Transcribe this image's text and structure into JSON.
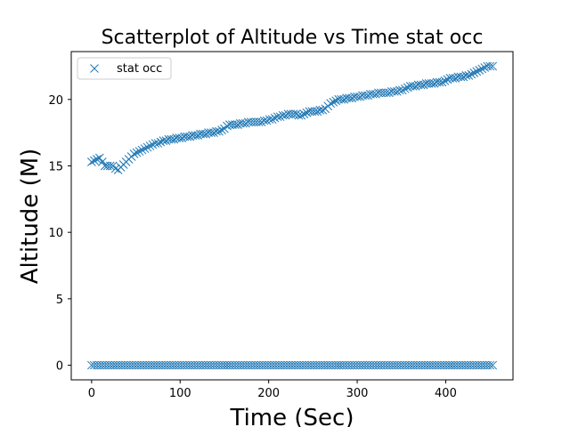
{
  "chart_data": {
    "type": "scatter",
    "title": "Scatterplot of Altitude vs Time stat occ",
    "xlabel": "Time (Sec)",
    "ylabel": "Altitude (M)",
    "xlim": [
      -23,
      476
    ],
    "ylim": [
      -1.1,
      23.6
    ],
    "xticks": [
      0,
      100,
      200,
      300,
      400
    ],
    "yticks": [
      0,
      5,
      10,
      15,
      20
    ],
    "marker": "x",
    "color": "#1f77b4",
    "grid": false,
    "legend_position": "top-left",
    "series": [
      {
        "name": "stat occ",
        "points": [
          [
            0,
            15.3
          ],
          [
            3,
            15.4
          ],
          [
            6,
            15.5
          ],
          [
            9,
            15.6
          ],
          [
            12,
            15.3
          ],
          [
            15,
            15.0
          ],
          [
            18,
            15.0
          ],
          [
            21,
            15.0
          ],
          [
            24,
            15.0
          ],
          [
            27,
            14.8
          ],
          [
            30,
            14.7
          ],
          [
            33,
            14.9
          ],
          [
            36,
            15.1
          ],
          [
            39,
            15.3
          ],
          [
            42,
            15.5
          ],
          [
            45,
            15.7
          ],
          [
            48,
            15.9
          ],
          [
            51,
            16.0
          ],
          [
            54,
            16.1
          ],
          [
            57,
            16.2
          ],
          [
            60,
            16.3
          ],
          [
            63,
            16.4
          ],
          [
            66,
            16.5
          ],
          [
            69,
            16.6
          ],
          [
            72,
            16.7
          ],
          [
            75,
            16.7
          ],
          [
            78,
            16.8
          ],
          [
            81,
            16.9
          ],
          [
            84,
            16.9
          ],
          [
            87,
            17.0
          ],
          [
            90,
            17.0
          ],
          [
            93,
            17.0
          ],
          [
            96,
            17.1
          ],
          [
            99,
            17.1
          ],
          [
            102,
            17.1
          ],
          [
            105,
            17.2
          ],
          [
            108,
            17.2
          ],
          [
            111,
            17.2
          ],
          [
            114,
            17.3
          ],
          [
            117,
            17.3
          ],
          [
            120,
            17.3
          ],
          [
            123,
            17.4
          ],
          [
            126,
            17.4
          ],
          [
            129,
            17.4
          ],
          [
            132,
            17.5
          ],
          [
            135,
            17.5
          ],
          [
            138,
            17.5
          ],
          [
            141,
            17.6
          ],
          [
            144,
            17.6
          ],
          [
            147,
            17.7
          ],
          [
            150,
            17.8
          ],
          [
            153,
            18.0
          ],
          [
            156,
            18.1
          ],
          [
            159,
            18.1
          ],
          [
            162,
            18.1
          ],
          [
            165,
            18.1
          ],
          [
            168,
            18.2
          ],
          [
            171,
            18.2
          ],
          [
            174,
            18.2
          ],
          [
            177,
            18.3
          ],
          [
            180,
            18.3
          ],
          [
            183,
            18.3
          ],
          [
            186,
            18.3
          ],
          [
            189,
            18.3
          ],
          [
            192,
            18.3
          ],
          [
            195,
            18.4
          ],
          [
            198,
            18.4
          ],
          [
            201,
            18.5
          ],
          [
            204,
            18.5
          ],
          [
            207,
            18.6
          ],
          [
            210,
            18.7
          ],
          [
            213,
            18.7
          ],
          [
            216,
            18.8
          ],
          [
            219,
            18.8
          ],
          [
            222,
            18.9
          ],
          [
            225,
            18.9
          ],
          [
            228,
            18.9
          ],
          [
            231,
            18.9
          ],
          [
            234,
            18.8
          ],
          [
            237,
            18.8
          ],
          [
            240,
            18.9
          ],
          [
            243,
            19.0
          ],
          [
            246,
            19.1
          ],
          [
            249,
            19.1
          ],
          [
            252,
            19.1
          ],
          [
            255,
            19.1
          ],
          [
            258,
            19.2
          ],
          [
            261,
            19.2
          ],
          [
            264,
            19.3
          ],
          [
            267,
            19.5
          ],
          [
            270,
            19.7
          ],
          [
            273,
            19.8
          ],
          [
            276,
            19.9
          ],
          [
            279,
            20.0
          ],
          [
            282,
            20.0
          ],
          [
            285,
            20.0
          ],
          [
            288,
            20.1
          ],
          [
            291,
            20.1
          ],
          [
            294,
            20.1
          ],
          [
            297,
            20.2
          ],
          [
            300,
            20.2
          ],
          [
            303,
            20.2
          ],
          [
            306,
            20.3
          ],
          [
            309,
            20.3
          ],
          [
            312,
            20.3
          ],
          [
            315,
            20.4
          ],
          [
            318,
            20.4
          ],
          [
            321,
            20.4
          ],
          [
            324,
            20.5
          ],
          [
            327,
            20.5
          ],
          [
            330,
            20.5
          ],
          [
            333,
            20.5
          ],
          [
            336,
            20.5
          ],
          [
            339,
            20.6
          ],
          [
            342,
            20.6
          ],
          [
            345,
            20.6
          ],
          [
            348,
            20.7
          ],
          [
            351,
            20.7
          ],
          [
            354,
            20.8
          ],
          [
            357,
            20.9
          ],
          [
            360,
            21.0
          ],
          [
            363,
            21.0
          ],
          [
            366,
            21.0
          ],
          [
            369,
            21.1
          ],
          [
            372,
            21.1
          ],
          [
            375,
            21.1
          ],
          [
            378,
            21.2
          ],
          [
            381,
            21.2
          ],
          [
            384,
            21.2
          ],
          [
            387,
            21.2
          ],
          [
            390,
            21.3
          ],
          [
            393,
            21.3
          ],
          [
            396,
            21.3
          ],
          [
            399,
            21.4
          ],
          [
            402,
            21.5
          ],
          [
            405,
            21.6
          ],
          [
            408,
            21.6
          ],
          [
            411,
            21.6
          ],
          [
            414,
            21.7
          ],
          [
            417,
            21.7
          ],
          [
            420,
            21.7
          ],
          [
            423,
            21.8
          ],
          [
            426,
            21.8
          ],
          [
            429,
            21.9
          ],
          [
            432,
            22.0
          ],
          [
            435,
            22.1
          ],
          [
            438,
            22.2
          ],
          [
            441,
            22.3
          ],
          [
            444,
            22.4
          ],
          [
            447,
            22.5
          ],
          [
            450,
            22.5
          ],
          [
            453,
            22.5
          ],
          [
            0,
            0
          ],
          [
            3,
            0
          ],
          [
            6,
            0
          ],
          [
            9,
            0
          ],
          [
            12,
            0
          ],
          [
            15,
            0
          ],
          [
            18,
            0
          ],
          [
            21,
            0
          ],
          [
            24,
            0
          ],
          [
            27,
            0
          ],
          [
            30,
            0
          ],
          [
            33,
            0
          ],
          [
            36,
            0
          ],
          [
            39,
            0
          ],
          [
            42,
            0
          ],
          [
            45,
            0
          ],
          [
            48,
            0
          ],
          [
            51,
            0
          ],
          [
            54,
            0
          ],
          [
            57,
            0
          ],
          [
            60,
            0
          ],
          [
            63,
            0
          ],
          [
            66,
            0
          ],
          [
            69,
            0
          ],
          [
            72,
            0
          ],
          [
            75,
            0
          ],
          [
            78,
            0
          ],
          [
            81,
            0
          ],
          [
            84,
            0
          ],
          [
            87,
            0
          ],
          [
            90,
            0
          ],
          [
            93,
            0
          ],
          [
            96,
            0
          ],
          [
            99,
            0
          ],
          [
            102,
            0
          ],
          [
            105,
            0
          ],
          [
            108,
            0
          ],
          [
            111,
            0
          ],
          [
            114,
            0
          ],
          [
            117,
            0
          ],
          [
            120,
            0
          ],
          [
            123,
            0
          ],
          [
            126,
            0
          ],
          [
            129,
            0
          ],
          [
            132,
            0
          ],
          [
            135,
            0
          ],
          [
            138,
            0
          ],
          [
            141,
            0
          ],
          [
            144,
            0
          ],
          [
            147,
            0
          ],
          [
            150,
            0
          ],
          [
            153,
            0
          ],
          [
            156,
            0
          ],
          [
            159,
            0
          ],
          [
            162,
            0
          ],
          [
            165,
            0
          ],
          [
            168,
            0
          ],
          [
            171,
            0
          ],
          [
            174,
            0
          ],
          [
            177,
            0
          ],
          [
            180,
            0
          ],
          [
            183,
            0
          ],
          [
            186,
            0
          ],
          [
            189,
            0
          ],
          [
            192,
            0
          ],
          [
            195,
            0
          ],
          [
            198,
            0
          ],
          [
            201,
            0
          ],
          [
            204,
            0
          ],
          [
            207,
            0
          ],
          [
            210,
            0
          ],
          [
            213,
            0
          ],
          [
            216,
            0
          ],
          [
            219,
            0
          ],
          [
            222,
            0
          ],
          [
            225,
            0
          ],
          [
            228,
            0
          ],
          [
            231,
            0
          ],
          [
            234,
            0
          ],
          [
            237,
            0
          ],
          [
            240,
            0
          ],
          [
            243,
            0
          ],
          [
            246,
            0
          ],
          [
            249,
            0
          ],
          [
            252,
            0
          ],
          [
            255,
            0
          ],
          [
            258,
            0
          ],
          [
            261,
            0
          ],
          [
            264,
            0
          ],
          [
            267,
            0
          ],
          [
            270,
            0
          ],
          [
            273,
            0
          ],
          [
            276,
            0
          ],
          [
            279,
            0
          ],
          [
            282,
            0
          ],
          [
            285,
            0
          ],
          [
            288,
            0
          ],
          [
            291,
            0
          ],
          [
            294,
            0
          ],
          [
            297,
            0
          ],
          [
            300,
            0
          ],
          [
            303,
            0
          ],
          [
            306,
            0
          ],
          [
            309,
            0
          ],
          [
            312,
            0
          ],
          [
            315,
            0
          ],
          [
            318,
            0
          ],
          [
            321,
            0
          ],
          [
            324,
            0
          ],
          [
            327,
            0
          ],
          [
            330,
            0
          ],
          [
            333,
            0
          ],
          [
            336,
            0
          ],
          [
            339,
            0
          ],
          [
            342,
            0
          ],
          [
            345,
            0
          ],
          [
            348,
            0
          ],
          [
            351,
            0
          ],
          [
            354,
            0
          ],
          [
            357,
            0
          ],
          [
            360,
            0
          ],
          [
            363,
            0
          ],
          [
            366,
            0
          ],
          [
            369,
            0
          ],
          [
            372,
            0
          ],
          [
            375,
            0
          ],
          [
            378,
            0
          ],
          [
            381,
            0
          ],
          [
            384,
            0
          ],
          [
            387,
            0
          ],
          [
            390,
            0
          ],
          [
            393,
            0
          ],
          [
            396,
            0
          ],
          [
            399,
            0
          ],
          [
            402,
            0
          ],
          [
            405,
            0
          ],
          [
            408,
            0
          ],
          [
            411,
            0
          ],
          [
            414,
            0
          ],
          [
            417,
            0
          ],
          [
            420,
            0
          ],
          [
            423,
            0
          ],
          [
            426,
            0
          ],
          [
            429,
            0
          ],
          [
            432,
            0
          ],
          [
            435,
            0
          ],
          [
            438,
            0
          ],
          [
            441,
            0
          ],
          [
            444,
            0
          ],
          [
            447,
            0
          ],
          [
            450,
            0
          ],
          [
            453,
            0
          ]
        ]
      }
    ]
  }
}
